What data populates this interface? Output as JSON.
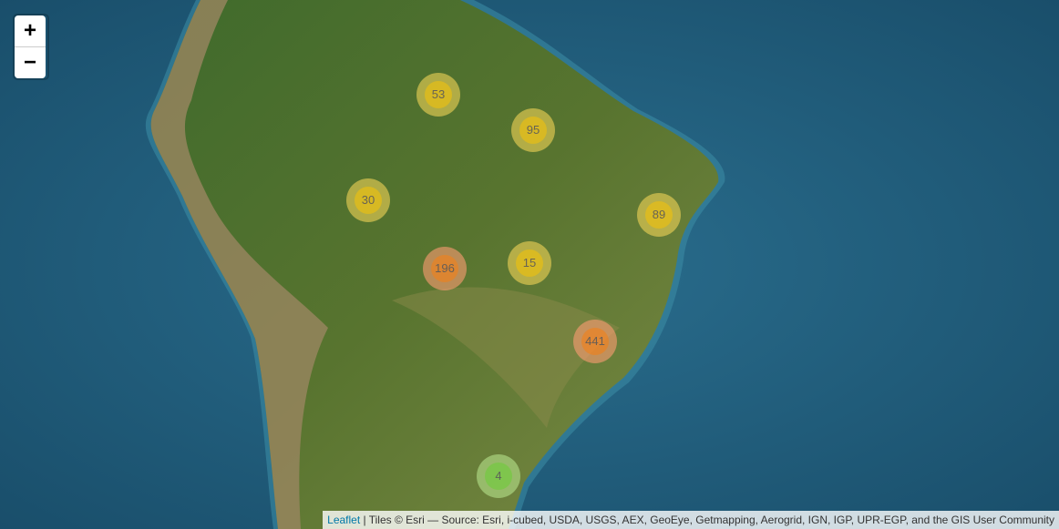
{
  "zoom": {
    "in": "+",
    "out": "−"
  },
  "clusters": [
    {
      "count": 53,
      "color": "rgba(240,194,12,0.6)",
      "halo": "rgba(241,211,87,0.6)"
    },
    {
      "count": 95,
      "color": "rgba(240,194,12,0.6)",
      "halo": "rgba(241,211,87,0.6)"
    },
    {
      "count": 30,
      "color": "rgba(240,194,12,0.6)",
      "halo": "rgba(241,211,87,0.6)"
    },
    {
      "count": 89,
      "color": "rgba(240,194,12,0.6)",
      "halo": "rgba(241,211,87,0.6)"
    },
    {
      "count": 196,
      "color": "rgba(241,128,23,0.6)",
      "halo": "rgba(253,156,115,0.6)"
    },
    {
      "count": 15,
      "color": "rgba(240,194,12,0.6)",
      "halo": "rgba(241,211,87,0.6)"
    },
    {
      "count": 441,
      "color": "rgba(241,128,23,0.6)",
      "halo": "rgba(253,156,115,0.6)"
    },
    {
      "count": 4,
      "color": "rgba(110,204,57,0.6)",
      "halo": "rgba(181,226,140,0.6)"
    }
  ],
  "attribution": {
    "link": "Leaflet",
    "text": " | Tiles © Esri — Source: Esri, i-cubed, USDA, USGS, AEX, GeoEye, Getmapping, Aerogrid, IGN, IGP, UPR-EGP, and the GIS User Community"
  }
}
